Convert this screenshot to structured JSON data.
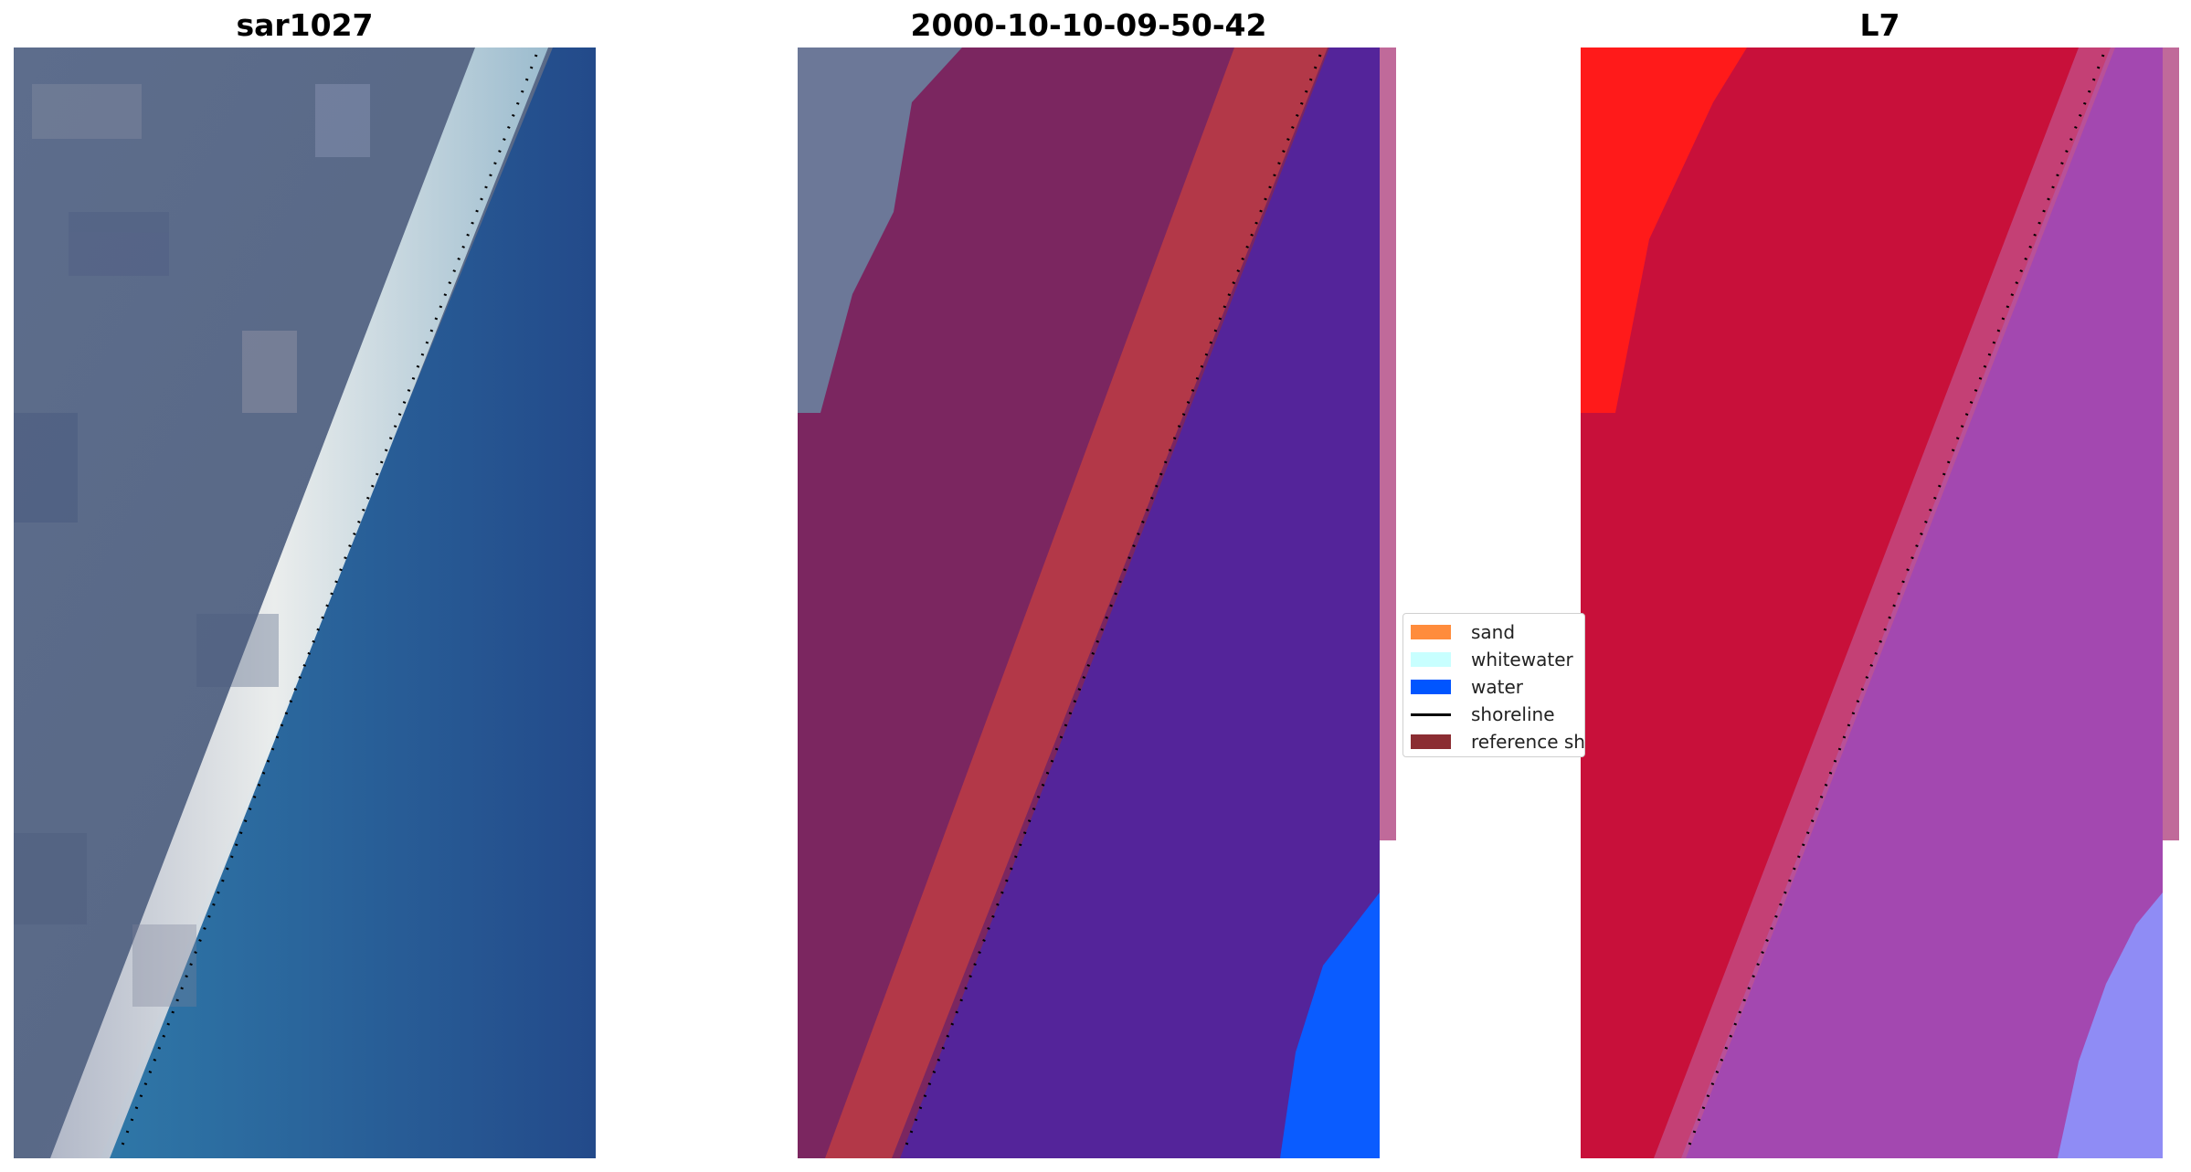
{
  "panels": [
    {
      "title": "sar1027"
    },
    {
      "title": "2000-10-10-09-50-42"
    },
    {
      "title": "L7"
    }
  ],
  "legend": {
    "items": [
      {
        "label": "sand",
        "color": "#ff8c3c",
        "kind": "patch"
      },
      {
        "label": "whitewater",
        "color": "#c8ffff",
        "kind": "patch"
      },
      {
        "label": "water",
        "color": "#0055ff",
        "kind": "patch"
      },
      {
        "label": "shoreline",
        "color": "#000000",
        "kind": "line"
      },
      {
        "label": "reference shoreline buffer",
        "color": "#8b2d32",
        "kind": "patch"
      }
    ]
  },
  "colors": {
    "land_rgb": "#5e6f92",
    "surf": "#e8ecef",
    "sea_rgb": "#2f6da3",
    "sea_dark": "#244c8c",
    "land_overlay": "#7b2660",
    "sand_buffer": "#b33848",
    "water_class": "#54249a",
    "water_blue": "#0a5cff",
    "strip": "#c06a9a",
    "index_land": "#c8103a",
    "index_high": "#ff1a1a",
    "index_water": "#a348b0",
    "index_light": "#8f8cf5"
  }
}
